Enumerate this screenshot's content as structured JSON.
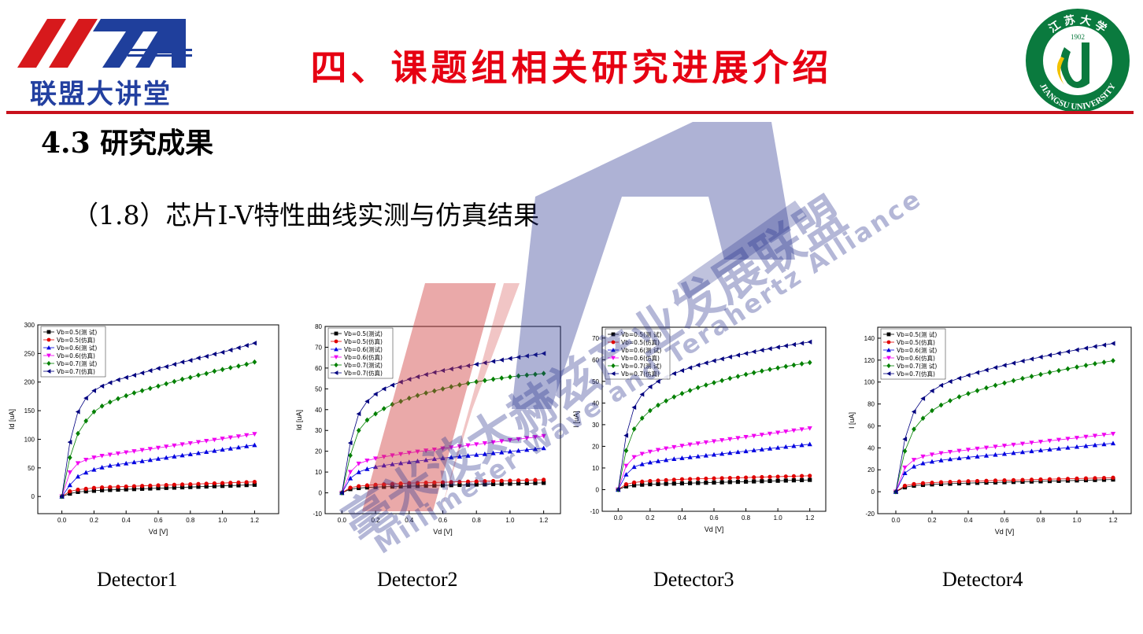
{
  "header": {
    "logo_text": "联盟大讲堂",
    "title": "四、课题组相关研究进展介绍",
    "university_logo": {
      "year": "1902",
      "ring_text": "JIANGSU UNIVERSITY",
      "ring_top": "江 苏 大 学",
      "color": "#0a7a3e",
      "accent": "#f2c200"
    }
  },
  "section_heading": "4.3  研究成果",
  "subtitle": "（1.8）芯片I-V特性曲线实测与仿真结果",
  "watermark": {
    "text_cn": "毫米波太赫兹产业发展联盟",
    "text_en": "Millimeter Wave and Terahertz Alliance"
  },
  "captions": [
    "Detector1",
    "Detector2",
    "Detector3",
    "Detector4"
  ],
  "colors": {
    "black": "#000000",
    "red": "#e00000",
    "blue": "#0000e0",
    "magenta": "#f000f0",
    "green": "#008000",
    "navy": "#000080",
    "title_red": "#e60012"
  },
  "chart_data": [
    {
      "type": "line",
      "title": "",
      "xlabel": "Vd [V]",
      "ylabel": "Id [uA]",
      "xlim": [
        -0.15,
        1.35
      ],
      "ylim": [
        -30,
        300
      ],
      "xticks": [
        0.0,
        0.2,
        0.4,
        0.6,
        0.8,
        1.0,
        1.2
      ],
      "yticks": [
        0,
        50,
        100,
        150,
        200,
        250,
        300
      ],
      "legend_position": "top-left",
      "x": [
        0,
        0.05,
        0.1,
        0.15,
        0.2,
        0.25,
        0.3,
        0.35,
        0.4,
        0.45,
        0.5,
        0.55,
        0.6,
        0.65,
        0.7,
        0.75,
        0.8,
        0.85,
        0.9,
        0.95,
        1.0,
        1.05,
        1.1,
        1.15,
        1.2
      ],
      "series": [
        {
          "name": "Vb=0.5(测 试)",
          "values": [
            0,
            5,
            8,
            9,
            10,
            11,
            11.5,
            12,
            12.5,
            13,
            13.5,
            14,
            14.5,
            15,
            15.5,
            16,
            16.5,
            17,
            17.5,
            18,
            18.5,
            19,
            19.5,
            20,
            20.5
          ]
        },
        {
          "name": "Vb=0.5(仿真)",
          "values": [
            0,
            9,
            12,
            13.5,
            15,
            16,
            16.5,
            17,
            17.5,
            18,
            18.5,
            19,
            19.5,
            20,
            20.5,
            21,
            21.5,
            22,
            22.5,
            23,
            23.5,
            24,
            24.5,
            25,
            25.5
          ]
        },
        {
          "name": "Vb=0.6(测 试)",
          "values": [
            0,
            20,
            35,
            42,
            47,
            51,
            54,
            56,
            58,
            60,
            62,
            64,
            66,
            68,
            70,
            72,
            74,
            76,
            78,
            80,
            82,
            84,
            86,
            88,
            90
          ]
        },
        {
          "name": "Vb=0.6(仿真)",
          "values": [
            0,
            42,
            58,
            64,
            68,
            71,
            73,
            75,
            77,
            79,
            81,
            83,
            85,
            87,
            89,
            91,
            93,
            95,
            97,
            99,
            101,
            103,
            105,
            107,
            109
          ]
        },
        {
          "name": "Vb=0.7(测 试)",
          "values": [
            0,
            68,
            110,
            132,
            148,
            158,
            165,
            171,
            176,
            181,
            185,
            189,
            193,
            197,
            201,
            205,
            208,
            212,
            215,
            219,
            222,
            225,
            228,
            231,
            235
          ]
        },
        {
          "name": "Vb=0.7(仿真)",
          "values": [
            0,
            95,
            148,
            172,
            185,
            193,
            199,
            204,
            208,
            212,
            216,
            220,
            224,
            227,
            231,
            235,
            238,
            242,
            245,
            249,
            252,
            256,
            260,
            264,
            268
          ]
        }
      ]
    },
    {
      "type": "line",
      "title": "",
      "xlabel": "Vd [V]",
      "ylabel": "Id [uA]",
      "xlim": [
        -0.1,
        1.3
      ],
      "ylim": [
        -10,
        80
      ],
      "xticks": [
        0.0,
        0.2,
        0.4,
        0.6,
        0.8,
        1.0,
        1.2
      ],
      "yticks": [
        -10,
        0,
        10,
        20,
        30,
        40,
        50,
        60,
        70,
        80
      ],
      "legend_position": "top-left",
      "x": [
        0,
        0.05,
        0.1,
        0.15,
        0.2,
        0.25,
        0.3,
        0.35,
        0.4,
        0.45,
        0.5,
        0.55,
        0.6,
        0.65,
        0.7,
        0.75,
        0.8,
        0.85,
        0.9,
        0.95,
        1.0,
        1.05,
        1.1,
        1.15,
        1.2
      ],
      "series": [
        {
          "name": "Vb=0.5(测试)",
          "values": [
            0,
            1.8,
            2.3,
            2.6,
            2.8,
            2.9,
            3.0,
            3.1,
            3.2,
            3.3,
            3.4,
            3.5,
            3.6,
            3.7,
            3.8,
            3.9,
            4.0,
            4.1,
            4.2,
            4.3,
            4.4,
            4.5,
            4.6,
            4.7,
            4.8
          ]
        },
        {
          "name": "Vb=0.5(仿真)",
          "values": [
            0,
            2.5,
            3.2,
            3.6,
            3.9,
            4.1,
            4.3,
            4.5,
            4.7,
            4.8,
            4.9,
            5.0,
            5.1,
            5.2,
            5.3,
            5.4,
            5.5,
            5.6,
            5.7,
            5.8,
            5.9,
            6.0,
            6.1,
            6.2,
            6.3
          ]
        },
        {
          "name": "Vb=0.6(测试)",
          "values": [
            0,
            7,
            10,
            11.5,
            12.5,
            13.2,
            13.8,
            14.3,
            14.8,
            15.3,
            15.8,
            16.3,
            16.7,
            17.1,
            17.5,
            17.9,
            18.3,
            18.7,
            19.1,
            19.5,
            19.9,
            20.3,
            20.7,
            21.1,
            21.5
          ]
        },
        {
          "name": "Vb=0.6(仿真)",
          "values": [
            0,
            10,
            14,
            15.5,
            16.5,
            17.3,
            18,
            18.6,
            19.2,
            19.8,
            20.3,
            20.8,
            21.3,
            21.8,
            22.3,
            22.8,
            23.3,
            23.8,
            24.3,
            24.8,
            25.3,
            25.8,
            26.3,
            26.8,
            27.3
          ]
        },
        {
          "name": "Vb=0.7(测试)",
          "values": [
            0,
            18,
            30,
            35,
            38,
            40.5,
            42.5,
            44,
            45.5,
            46.8,
            48,
            49,
            50,
            51,
            51.9,
            52.7,
            53.4,
            54,
            54.6,
            55.2,
            55.7,
            56.2,
            56.6,
            57,
            57.4
          ]
        },
        {
          "name": "Vb=0.7(仿真)",
          "values": [
            0,
            24,
            38,
            44,
            47.5,
            50,
            51.8,
            53.3,
            54.6,
            55.8,
            56.9,
            57.9,
            58.8,
            59.6,
            60.4,
            61.1,
            61.8,
            62.5,
            63.2,
            63.9,
            64.6,
            65.2,
            65.8,
            66.4,
            67
          ]
        }
      ]
    },
    {
      "type": "line",
      "title": "",
      "xlabel": "Vd [V]",
      "ylabel": "I [uA]",
      "xlim": [
        -0.1,
        1.3
      ],
      "ylim": [
        -10,
        75
      ],
      "xticks": [
        0.0,
        0.2,
        0.4,
        0.6,
        0.8,
        1.0,
        1.2
      ],
      "yticks": [
        -10,
        0,
        10,
        20,
        30,
        40,
        50,
        60,
        70
      ],
      "legend_position": "top-left",
      "x": [
        0,
        0.05,
        0.1,
        0.15,
        0.2,
        0.25,
        0.3,
        0.35,
        0.4,
        0.45,
        0.5,
        0.55,
        0.6,
        0.65,
        0.7,
        0.75,
        0.8,
        0.85,
        0.9,
        0.95,
        1.0,
        1.05,
        1.1,
        1.15,
        1.2
      ],
      "series": [
        {
          "name": "Vb=0.5(测  试)",
          "values": [
            0,
            1.5,
            2.0,
            2.3,
            2.5,
            2.6,
            2.7,
            2.8,
            2.9,
            3.0,
            3.1,
            3.2,
            3.3,
            3.4,
            3.5,
            3.6,
            3.7,
            3.8,
            3.9,
            4.0,
            4.1,
            4.2,
            4.3,
            4.4,
            4.5
          ]
        },
        {
          "name": "Vb=0.5(仿真)",
          "values": [
            0,
            2.5,
            3.3,
            3.7,
            4.0,
            4.2,
            4.4,
            4.6,
            4.8,
            4.9,
            5.0,
            5.1,
            5.2,
            5.3,
            5.4,
            5.5,
            5.6,
            5.7,
            5.8,
            5.9,
            6.0,
            6.1,
            6.2,
            6.3,
            6.4
          ]
        },
        {
          "name": "Vb=0.6(测  试)",
          "values": [
            0,
            7,
            10.5,
            11.8,
            12.6,
            13.2,
            13.7,
            14.2,
            14.6,
            15.0,
            15.4,
            15.8,
            16.2,
            16.6,
            17.0,
            17.4,
            17.8,
            18.2,
            18.6,
            19.0,
            19.4,
            19.8,
            20.2,
            20.6,
            21.0
          ]
        },
        {
          "name": "Vb=0.6(仿真)",
          "values": [
            0,
            11,
            15,
            16.5,
            17.5,
            18.3,
            19.0,
            19.6,
            20.2,
            20.8,
            21.3,
            21.8,
            22.3,
            22.8,
            23.3,
            23.8,
            24.3,
            24.8,
            25.3,
            25.8,
            26.3,
            26.8,
            27.3,
            27.8,
            28.3
          ]
        },
        {
          "name": "Vb=0.7(测 试)",
          "values": [
            0,
            18,
            28,
            33,
            36.5,
            39,
            41,
            42.8,
            44.4,
            45.8,
            47.1,
            48.3,
            49.4,
            50.4,
            51.4,
            52.3,
            53.2,
            54.0,
            54.8,
            55.5,
            56.2,
            56.9,
            57.5,
            58.1,
            58.7
          ]
        },
        {
          "name": "Vb=0.7(仿真)",
          "values": [
            0,
            25,
            38,
            44,
            47.5,
            50,
            52,
            53.6,
            55,
            56.3,
            57.5,
            58.5,
            59.5,
            60.4,
            61.3,
            62.1,
            62.9,
            63.7,
            64.4,
            65.1,
            65.8,
            66.4,
            67,
            67.6,
            68.2
          ]
        }
      ]
    },
    {
      "type": "line",
      "title": "",
      "xlabel": "Vd [V]",
      "ylabel": "I [uA]",
      "xlim": [
        -0.1,
        1.3
      ],
      "ylim": [
        -20,
        150
      ],
      "xticks": [
        0.0,
        0.2,
        0.4,
        0.6,
        0.8,
        1.0,
        1.2
      ],
      "yticks": [
        -20,
        0,
        20,
        40,
        60,
        80,
        100,
        120,
        140
      ],
      "legend_position": "top-left",
      "x": [
        0,
        0.05,
        0.1,
        0.15,
        0.2,
        0.25,
        0.3,
        0.35,
        0.4,
        0.45,
        0.5,
        0.55,
        0.6,
        0.65,
        0.7,
        0.75,
        0.8,
        0.85,
        0.9,
        0.95,
        1.0,
        1.05,
        1.1,
        1.15,
        1.2
      ],
      "series": [
        {
          "name": "Vb=0.5(测  试)",
          "values": [
            0,
            4,
            5.5,
            6.2,
            6.7,
            7.0,
            7.3,
            7.6,
            7.9,
            8.1,
            8.3,
            8.5,
            8.7,
            8.9,
            9.1,
            9.3,
            9.5,
            9.7,
            9.9,
            10.1,
            10.3,
            10.5,
            10.7,
            10.9,
            11.1
          ]
        },
        {
          "name": "Vb=0.5(仿真)",
          "values": [
            0,
            5.5,
            7,
            7.8,
            8.3,
            8.7,
            9.0,
            9.3,
            9.6,
            9.8,
            10.0,
            10.2,
            10.4,
            10.6,
            10.8,
            11.0,
            11.2,
            11.4,
            11.6,
            11.8,
            12.0,
            12.2,
            12.4,
            12.6,
            12.8
          ]
        },
        {
          "name": "Vb=0.6(测  试)",
          "values": [
            0,
            17,
            23,
            26,
            27.5,
            28.7,
            29.7,
            30.6,
            31.4,
            32.2,
            33,
            33.8,
            34.6,
            35.4,
            36.2,
            37,
            37.8,
            38.6,
            39.4,
            40.2,
            41,
            41.8,
            42.6,
            43.4,
            44.2
          ]
        },
        {
          "name": "Vb=0.6(仿真)",
          "values": [
            0,
            22,
            29,
            32,
            33.8,
            35.1,
            36.2,
            37.2,
            38.2,
            39.2,
            40.1,
            41,
            41.9,
            42.8,
            43.7,
            44.6,
            45.5,
            46.4,
            47.3,
            48.2,
            49.1,
            50,
            50.9,
            51.8,
            52.7
          ]
        },
        {
          "name": "Vb=0.7(测 试)",
          "values": [
            0,
            37,
            57,
            67,
            74,
            79,
            83,
            86.5,
            89.5,
            92.2,
            94.7,
            97,
            99.2,
            101.3,
            103.3,
            105.2,
            107,
            108.8,
            110.5,
            112.1,
            113.7,
            115.2,
            116.7,
            118.1,
            119.5
          ]
        },
        {
          "name": "Vb=0.7(仿真)",
          "values": [
            0,
            48,
            73,
            85,
            92,
            97,
            100.5,
            103.5,
            106.2,
            108.7,
            111,
            113.2,
            115.3,
            117.3,
            119.2,
            121,
            122.8,
            124.5,
            126.2,
            127.8,
            129.4,
            130.9,
            132.4,
            133.8,
            135.2
          ]
        }
      ]
    }
  ]
}
